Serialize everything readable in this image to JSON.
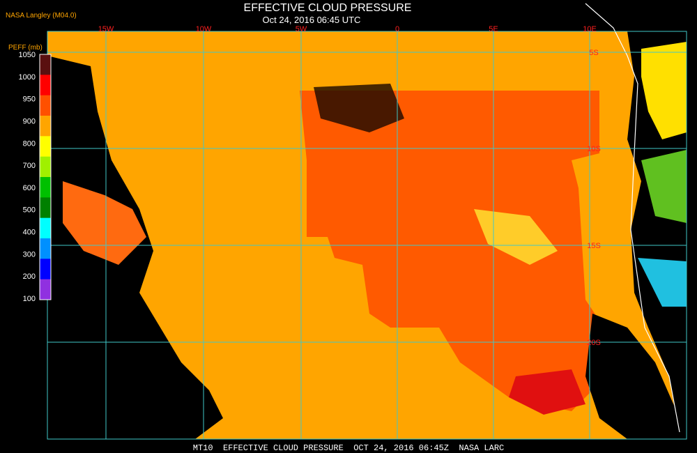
{
  "header": {
    "title": "EFFECTIVE CLOUD PRESSURE",
    "subtitle": "Oct 24, 2016 06:45 UTC",
    "source": "NASA Langley (M04.0)"
  },
  "colorbar": {
    "label": "PEFF (mb)",
    "ticks": [
      "1050",
      "1000",
      "950",
      "900",
      "800",
      "700",
      "600",
      "500",
      "400",
      "300",
      "200",
      "100"
    ],
    "colors": [
      "#5a1010",
      "#ff0000",
      "#ff5000",
      "#ffa500",
      "#ffff00",
      "#a0f000",
      "#00c000",
      "#008000",
      "#00ffff",
      "#0090ff",
      "#0000ff",
      "#9030e0"
    ]
  },
  "map": {
    "lon_labels": [
      "15W",
      "10W",
      "5W",
      "0",
      "5E",
      "10E"
    ],
    "lat_labels": [
      "5S",
      "10S",
      "15S",
      "20S"
    ]
  },
  "footer": "MT10  EFFECTIVE CLOUD PRESSURE  OCT 24, 2016 06:45Z  NASA LARC"
}
